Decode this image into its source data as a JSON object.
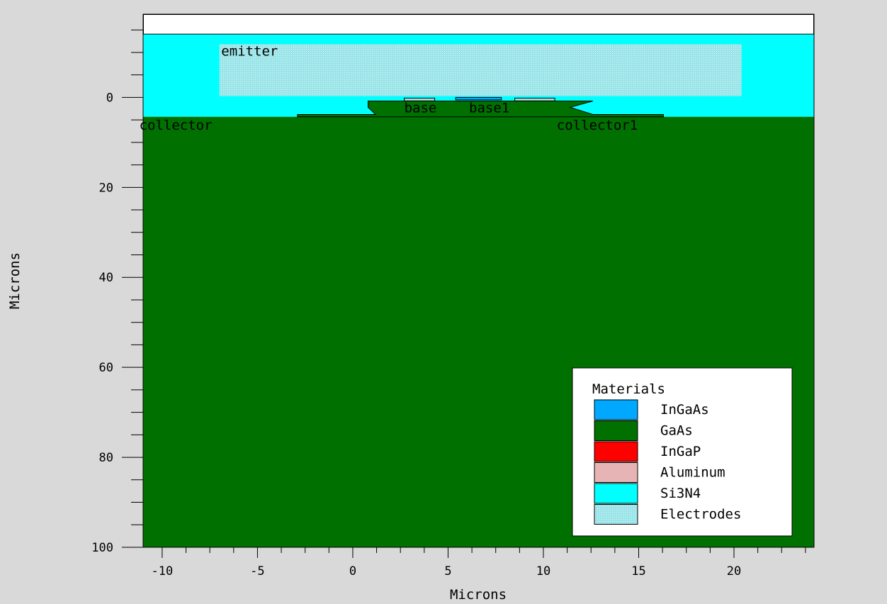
{
  "xlabel": "Microns",
  "ylabel": "Microns",
  "chart_data": {
    "type": "diagram",
    "xlabel": "Microns",
    "ylabel": "Microns",
    "xlim": [
      -11,
      24.2
    ],
    "ylim": [
      100,
      -18.5
    ],
    "x_ticks": [
      -10,
      -5,
      0,
      5,
      10,
      15,
      20
    ],
    "y_ticks": [
      0,
      20,
      40,
      60,
      80,
      100
    ],
    "regions": [
      {
        "name": "top-blank",
        "material": "",
        "color": "#ffffff",
        "polygon": [
          [
            -11,
            -18.5
          ],
          [
            24.2,
            -18.5
          ],
          [
            24.2,
            -14
          ],
          [
            -11,
            -14
          ]
        ]
      },
      {
        "name": "nitride",
        "material": "Si3N4",
        "color": "#00ffff",
        "polygon": [
          [
            -11,
            -14
          ],
          [
            24.2,
            -14
          ],
          [
            24.2,
            4.3
          ],
          [
            -11,
            4.3
          ]
        ]
      },
      {
        "name": "substrate",
        "material": "GaAs",
        "color": "#007000",
        "polygon": [
          [
            -11,
            4.3
          ],
          [
            24.2,
            4.3
          ],
          [
            24.2,
            100
          ],
          [
            -11,
            100
          ]
        ]
      },
      {
        "name": "mesa",
        "material": "GaAs",
        "color": "#007000",
        "polygon": [
          [
            0.8,
            0.8
          ],
          [
            12.6,
            0.8
          ],
          [
            11.4,
            2.2
          ],
          [
            12.6,
            3.8
          ],
          [
            16.3,
            3.8
          ],
          [
            16.3,
            4.3
          ],
          [
            -2.9,
            4.3
          ],
          [
            -2.9,
            3.8
          ],
          [
            1.2,
            3.8
          ],
          [
            0.8,
            2.2
          ]
        ]
      },
      {
        "name": "emitter-electrode",
        "material": "Electrodes",
        "color": "#a8ecec",
        "polygon": [
          [
            -7,
            -11.8
          ],
          [
            20.4,
            -11.8
          ],
          [
            20.4,
            -0.3
          ],
          [
            -7,
            -0.3
          ]
        ]
      },
      {
        "name": "base-pad",
        "material": "Electrodes",
        "color": "#a8ecec",
        "polygon": [
          [
            2.7,
            0.15
          ],
          [
            4.3,
            0.15
          ],
          [
            4.3,
            0.75
          ],
          [
            2.7,
            0.75
          ]
        ]
      },
      {
        "name": "base1-pad",
        "material": "Electrodes",
        "color": "#a8ecec",
        "polygon": [
          [
            8.5,
            0.15
          ],
          [
            10.6,
            0.15
          ],
          [
            10.6,
            0.75
          ],
          [
            8.5,
            0.75
          ]
        ]
      },
      {
        "name": "emitter-cap",
        "material": "InGaAs",
        "color": "#00a8ff",
        "polygon": [
          [
            5.4,
            0
          ],
          [
            7.8,
            0
          ],
          [
            7.8,
            0.55
          ],
          [
            5.4,
            0.55
          ]
        ]
      }
    ],
    "labels": [
      {
        "text": "emitter",
        "x": -6.9,
        "y": -9.3
      },
      {
        "text": "base",
        "x": 2.7,
        "y": 3.3
      },
      {
        "text": "base1",
        "x": 6.1,
        "y": 3.3
      },
      {
        "text": "collector",
        "x": -11.2,
        "y": 7.2
      },
      {
        "text": "collector1",
        "x": 10.7,
        "y": 7.2
      }
    ],
    "legend": {
      "title": "Materials",
      "position": "bottom-right",
      "entries": [
        {
          "name": "InGaAs",
          "color": "#00a8ff"
        },
        {
          "name": "GaAs",
          "color": "#007000"
        },
        {
          "name": "InGaP",
          "color": "#ff0000"
        },
        {
          "name": "Aluminum",
          "color": "#e6b4b4"
        },
        {
          "name": "Si3N4",
          "color": "#00ffff"
        },
        {
          "name": "Electrodes",
          "color": "#a8ecec"
        }
      ]
    }
  }
}
